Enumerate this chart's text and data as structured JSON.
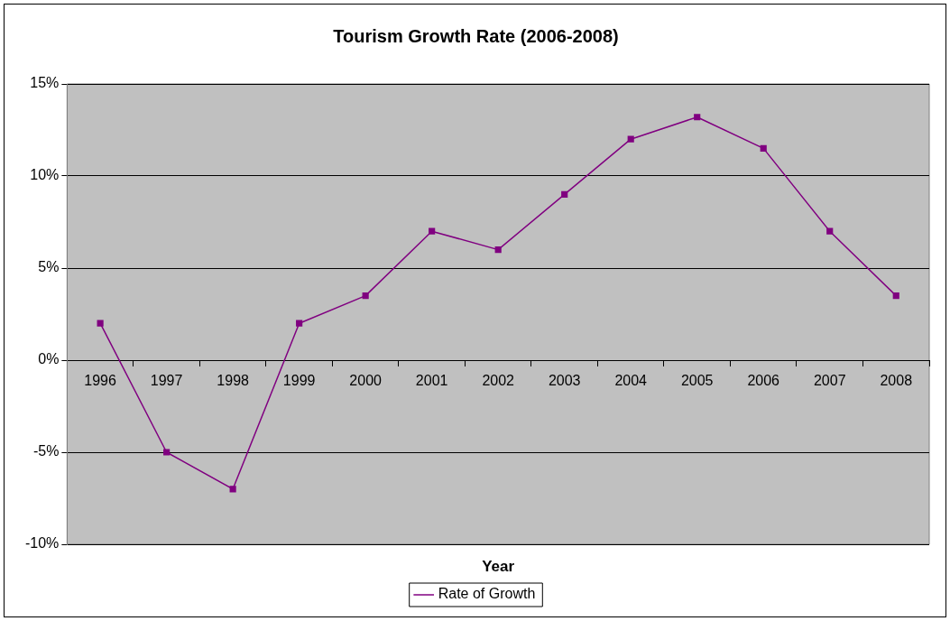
{
  "chart_data": {
    "type": "line",
    "title": "Tourism Growth Rate (2006-2008)",
    "xlabel": "Year",
    "categories": [
      "1996",
      "1997",
      "1998",
      "1999",
      "2000",
      "2001",
      "2002",
      "2003",
      "2004",
      "2005",
      "2006",
      "2007",
      "2008"
    ],
    "series": [
      {
        "name": "Rate of Growth",
        "color": "#800080",
        "values": [
          2,
          -5,
          -7,
          2,
          3.5,
          7,
          6,
          9,
          12,
          13.2,
          11.5,
          7,
          3.5
        ]
      }
    ],
    "ylim": [
      -10,
      15
    ],
    "yticks": [
      {
        "value": -10,
        "label": "-10%"
      },
      {
        "value": -5,
        "label": "-5%"
      },
      {
        "value": 0,
        "label": "0%"
      },
      {
        "value": 5,
        "label": "5%"
      },
      {
        "value": 10,
        "label": "10%"
      },
      {
        "value": 15,
        "label": "15%"
      }
    ],
    "grid": "y",
    "legend": "bottom",
    "marker": "square",
    "line_style": "solid"
  }
}
